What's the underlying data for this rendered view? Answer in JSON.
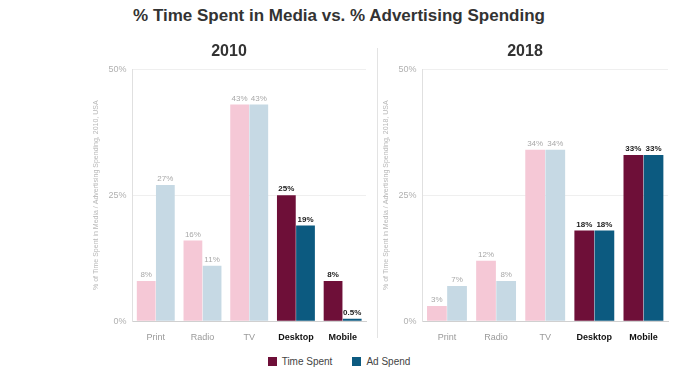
{
  "title": "% Time Spent in Media vs. % Advertising Spending",
  "legend": "bottom",
  "chart_data": [
    {
      "type": "bar",
      "title": "2010",
      "y_label": "% of Time Spent in Media / Advertising Spending, 2010, USA",
      "categories": [
        "Print",
        "Radio",
        "TV",
        "Desktop",
        "Mobile"
      ],
      "series": [
        {
          "name": "Time Spent",
          "color": "#6e0f38",
          "colors": [
            "#f5c8d6",
            "#f5c8d6",
            "#f5c8d6",
            "#6e0f38",
            "#6e0f38"
          ],
          "values": [
            8,
            16,
            43,
            25,
            8
          ],
          "value_labels": [
            "8%",
            "16%",
            "43%",
            "25%",
            "8%"
          ]
        },
        {
          "name": "Ad Spend",
          "color": "#0c5a80",
          "colors": [
            "#c6d9e4",
            "#c6d9e4",
            "#c6d9e4",
            "#0c5a80",
            "#0c5a80"
          ],
          "values": [
            27,
            11,
            43,
            19,
            0.5
          ],
          "value_labels": [
            "27%",
            "11%",
            "43%",
            "19%",
            "0.5%"
          ]
        }
      ],
      "ylim": [
        0,
        50
      ],
      "yticks": [
        {
          "value": 0,
          "label": "0%"
        },
        {
          "value": 25,
          "label": "25%"
        },
        {
          "value": 50,
          "label": "50%"
        }
      ],
      "grid": true,
      "data_labels": true
    },
    {
      "type": "bar",
      "title": "2018",
      "y_label": "% of Time Spent in Media / Advertising Spending, 2018, USA",
      "categories": [
        "Print",
        "Radio",
        "TV",
        "Desktop",
        "Mobile"
      ],
      "series": [
        {
          "name": "Time Spent",
          "color": "#6e0f38",
          "colors": [
            "#f5c8d6",
            "#f5c8d6",
            "#f5c8d6",
            "#6e0f38",
            "#6e0f38"
          ],
          "values": [
            3,
            12,
            34,
            18,
            33
          ],
          "value_labels": [
            "3%",
            "12%",
            "34%",
            "18%",
            "33%"
          ]
        },
        {
          "name": "Ad Spend",
          "color": "#0c5a80",
          "colors": [
            "#c6d9e4",
            "#c6d9e4",
            "#c6d9e4",
            "#0c5a80",
            "#0c5a80"
          ],
          "values": [
            7,
            8,
            34,
            18,
            33
          ],
          "value_labels": [
            "7%",
            "8%",
            "34%",
            "18%",
            "33%"
          ]
        }
      ],
      "ylim": [
        0,
        50
      ],
      "yticks": [
        {
          "value": 0,
          "label": "0%"
        },
        {
          "value": 25,
          "label": "25%"
        },
        {
          "value": 50,
          "label": "50%"
        }
      ],
      "grid": true,
      "data_labels": true
    }
  ]
}
